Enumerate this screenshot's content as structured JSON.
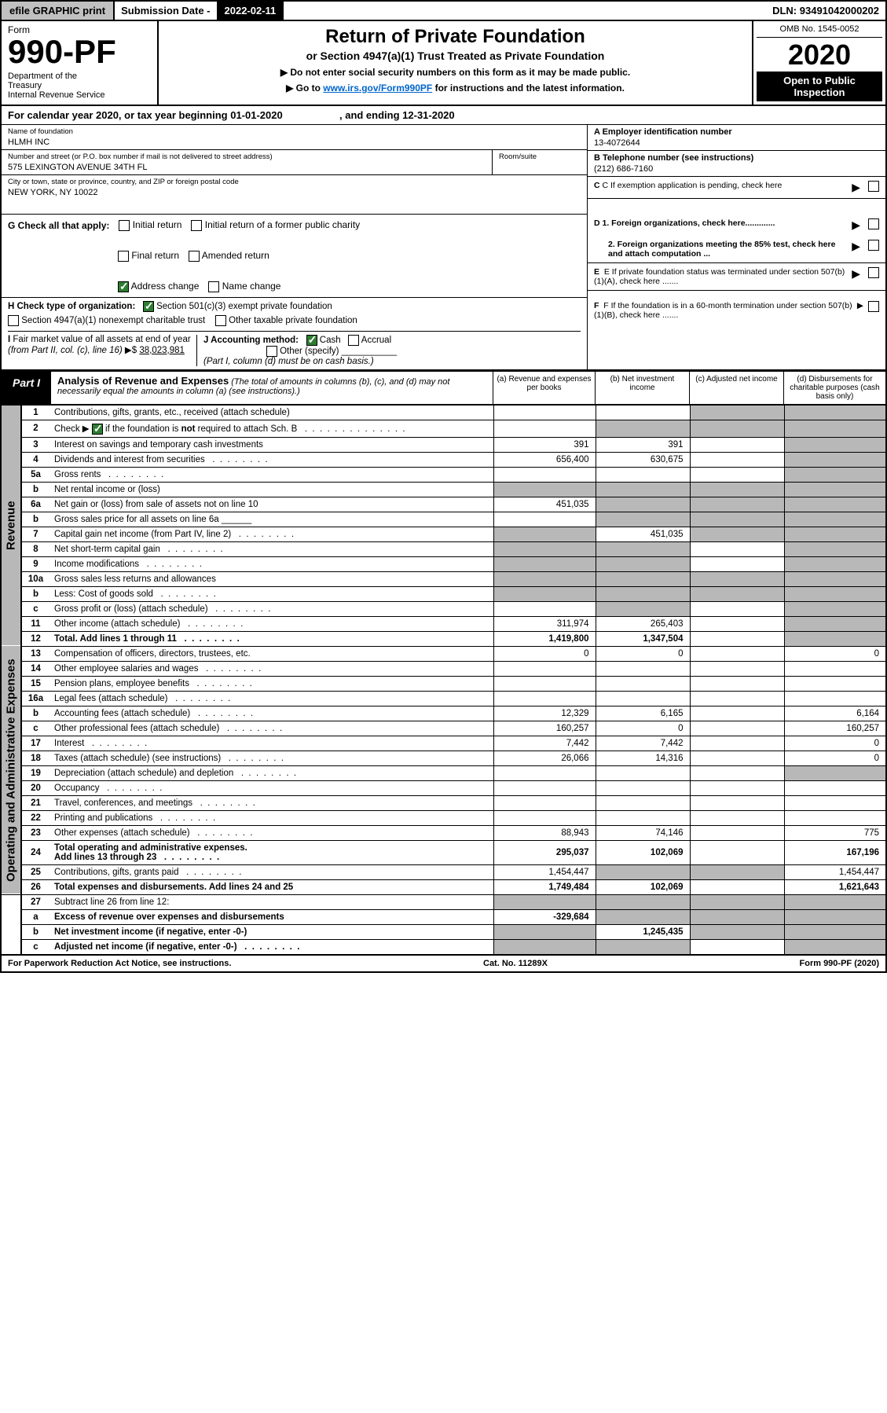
{
  "topbar": {
    "efile": "efile GRAPHIC print",
    "sub_label": "Submission Date - ",
    "sub_date": "2022-02-11",
    "dln_label": "DLN: ",
    "dln": "93491042000202"
  },
  "header": {
    "form_label": "Form",
    "form_number": "990-PF",
    "dept": "Department of the Treasury\nInternal Revenue Service",
    "title": "Return of Private Foundation",
    "subtitle": "or Section 4947(a)(1) Trust Treated as Private Foundation",
    "instruct1": "▶ Do not enter social security numbers on this form as it may be made public.",
    "instruct2_pre": "▶ Go to ",
    "instruct2_link": "www.irs.gov/Form990PF",
    "instruct2_post": " for instructions and the latest information.",
    "omb": "OMB No. 1545-0052",
    "year": "2020",
    "open": "Open to Public Inspection"
  },
  "calyear": {
    "text": "For calendar year 2020, or tax year beginning 01-01-2020",
    "end": ", and ending 12-31-2020"
  },
  "info": {
    "name_lbl": "Name of foundation",
    "name": "HLMH INC",
    "addr_lbl": "Number and street (or P.O. box number if mail is not delivered to street address)",
    "addr": "575 LEXINGTON AVENUE 34TH FL",
    "room_lbl": "Room/suite",
    "city_lbl": "City or town, state or province, country, and ZIP or foreign postal code",
    "city": "NEW YORK, NY  10022",
    "ein_lbl": "A Employer identification number",
    "ein": "13-4072644",
    "tel_lbl": "B Telephone number (see instructions)",
    "tel": "(212) 686-7160",
    "c_lbl": "C If exemption application is pending, check here",
    "d1": "D 1. Foreign organizations, check here.............",
    "d2": "2. Foreign organizations meeting the 85% test, check here and attach computation ...",
    "e_lbl": "E  If private foundation status was terminated under section 507(b)(1)(A), check here .......",
    "f_lbl": "F  If the foundation is in a 60-month termination under section 507(b)(1)(B), check here .......",
    "g_lbl": "G Check all that apply:",
    "g_opts": [
      "Initial return",
      "Initial return of a former public charity",
      "Final return",
      "Amended return",
      "Address change",
      "Name change"
    ],
    "h_lbl": "H Check type of organization:",
    "h_opts": [
      "Section 501(c)(3) exempt private foundation",
      "Section 4947(a)(1) nonexempt charitable trust",
      "Other taxable private foundation"
    ],
    "i_lbl": "I Fair market value of all assets at end of year (from Part II, col. (c), line 16)",
    "i_val": "38,023,981",
    "j_lbl": "J Accounting method:",
    "j_opts": [
      "Cash",
      "Accrual",
      "Other (specify)"
    ],
    "j_note": "(Part I, column (d) must be on cash basis.)"
  },
  "part1": {
    "label": "Part I",
    "title": "Analysis of Revenue and Expenses",
    "title_note": "(The total of amounts in columns (b), (c), and (d) may not necessarily equal the amounts in column (a) (see instructions).)",
    "cols": {
      "a": "(a) Revenue and expenses per books",
      "b": "(b) Net investment income",
      "c": "(c) Adjusted net income",
      "d": "(d) Disbursements for charitable purposes (cash basis only)"
    }
  },
  "sections": {
    "revenue": "Revenue",
    "opex": "Operating and Administrative Expenses"
  },
  "rows": [
    {
      "n": "1",
      "d": "s",
      "a": "",
      "b": "",
      "c": "s"
    },
    {
      "n": "2",
      "d": "s",
      "dots": true,
      "a": "",
      "b": "s",
      "c": "s"
    },
    {
      "n": "3",
      "d": "s",
      "a": "391",
      "b": "391",
      "c": ""
    },
    {
      "n": "4",
      "d": "s",
      "dots": true,
      "a": "656,400",
      "b": "630,675",
      "c": ""
    },
    {
      "n": "5a",
      "d": "s",
      "dots": true,
      "a": "",
      "b": "",
      "c": ""
    },
    {
      "n": "b",
      "d": "s",
      "a": "s",
      "b": "s",
      "c": "s"
    },
    {
      "n": "6a",
      "d": "s",
      "a": "451,035",
      "b": "s",
      "c": "s"
    },
    {
      "n": "b",
      "d": "s",
      "a": "",
      "b": "s",
      "c": "s"
    },
    {
      "n": "7",
      "d": "s",
      "dots": true,
      "a": "s",
      "b": "451,035",
      "c": "s"
    },
    {
      "n": "8",
      "d": "s",
      "dots": true,
      "a": "s",
      "b": "s",
      "c": ""
    },
    {
      "n": "9",
      "d": "s",
      "dots": true,
      "a": "s",
      "b": "s",
      "c": ""
    },
    {
      "n": "10a",
      "d": "s",
      "a": "s",
      "b": "s",
      "c": "s"
    },
    {
      "n": "b",
      "d": "s",
      "dots": true,
      "a": "s",
      "b": "s",
      "c": "s"
    },
    {
      "n": "c",
      "d": "s",
      "dots": true,
      "a": "",
      "b": "s",
      "c": ""
    },
    {
      "n": "11",
      "d": "s",
      "dots": true,
      "a": "311,974",
      "b": "265,403",
      "c": ""
    },
    {
      "n": "12",
      "d": "s",
      "dots": true,
      "bold": true,
      "a": "1,419,800",
      "b": "1,347,504",
      "c": ""
    },
    {
      "n": "13",
      "d": "0",
      "a": "0",
      "b": "0",
      "c": ""
    },
    {
      "n": "14",
      "d": "",
      "dots": true,
      "a": "",
      "b": "",
      "c": ""
    },
    {
      "n": "15",
      "d": "",
      "dots": true,
      "a": "",
      "b": "",
      "c": ""
    },
    {
      "n": "16a",
      "d": "",
      "dots": true,
      "a": "",
      "b": "",
      "c": ""
    },
    {
      "n": "b",
      "d": "6,164",
      "dots": true,
      "a": "12,329",
      "b": "6,165",
      "c": ""
    },
    {
      "n": "c",
      "d": "160,257",
      "dots": true,
      "a": "160,257",
      "b": "0",
      "c": ""
    },
    {
      "n": "17",
      "d": "0",
      "dots": true,
      "a": "7,442",
      "b": "7,442",
      "c": ""
    },
    {
      "n": "18",
      "d": "0",
      "dots": true,
      "a": "26,066",
      "b": "14,316",
      "c": ""
    },
    {
      "n": "19",
      "d": "s",
      "dots": true,
      "a": "",
      "b": "",
      "c": ""
    },
    {
      "n": "20",
      "d": "",
      "dots": true,
      "a": "",
      "b": "",
      "c": ""
    },
    {
      "n": "21",
      "d": "",
      "dots": true,
      "a": "",
      "b": "",
      "c": ""
    },
    {
      "n": "22",
      "d": "",
      "dots": true,
      "a": "",
      "b": "",
      "c": ""
    },
    {
      "n": "23",
      "d": "775",
      "dots": true,
      "a": "88,943",
      "b": "74,146",
      "c": ""
    },
    {
      "n": "24",
      "d": "167,196",
      "dots": true,
      "bold": true,
      "a": "295,037",
      "b": "102,069",
      "c": ""
    },
    {
      "n": "25",
      "d": "1,454,447",
      "dots": true,
      "a": "1,454,447",
      "b": "s",
      "c": "s"
    },
    {
      "n": "26",
      "d": "1,621,643",
      "bold": true,
      "a": "1,749,484",
      "b": "102,069",
      "c": ""
    },
    {
      "n": "27",
      "d": "s",
      "a": "s",
      "b": "s",
      "c": "s"
    },
    {
      "n": "a",
      "d": "s",
      "bold": true,
      "a": "-329,684",
      "b": "s",
      "c": "s"
    },
    {
      "n": "b",
      "d": "s",
      "bold": true,
      "a": "s",
      "b": "1,245,435",
      "c": "s"
    },
    {
      "n": "c",
      "d": "s",
      "dots": true,
      "bold": true,
      "a": "s",
      "b": "s",
      "c": ""
    }
  ],
  "footer": {
    "left": "For Paperwork Reduction Act Notice, see instructions.",
    "mid": "Cat. No. 11289X",
    "right": "Form 990-PF (2020)"
  }
}
